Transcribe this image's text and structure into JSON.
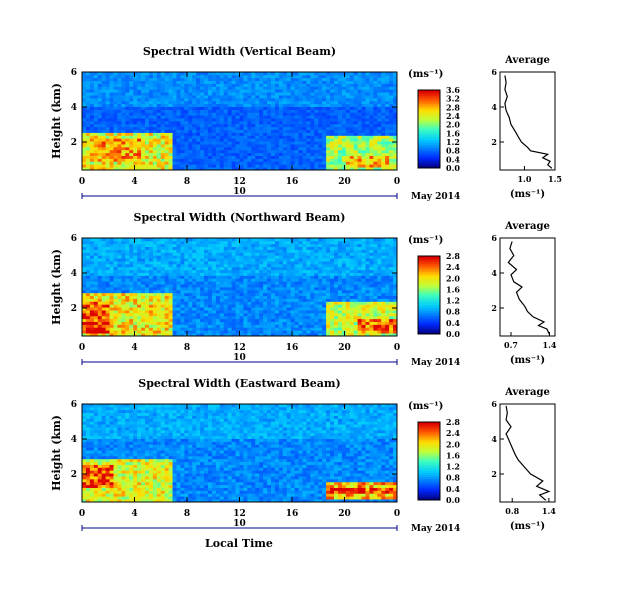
{
  "chart_data": [
    {
      "type": "heatmap",
      "title": "Spectral Width (Vertical Beam)",
      "ylabel": "Height (km)",
      "xticks": [
        "0",
        "4",
        "8",
        "12",
        "16",
        "20",
        "0"
      ],
      "yticks": [
        "2",
        "4",
        "6"
      ],
      "xlim": [
        0,
        24
      ],
      "ylim": [
        0.4,
        6.0
      ],
      "colorbar": {
        "unit": "(ms⁻¹)",
        "ticks": [
          "0.0",
          "0.4",
          "0.8",
          "1.2",
          "1.6",
          "2.0",
          "2.4",
          "2.8",
          "3.2",
          "3.6"
        ],
        "range": [
          0,
          3.6
        ]
      },
      "date_bar": {
        "label": "10",
        "date": "May 2014"
      },
      "profile": {
        "title": "Average",
        "xlabel": "(ms⁻¹)",
        "xticks": [
          "1.0",
          "1.5"
        ],
        "xlim": [
          0.6,
          1.5
        ],
        "yticks": [
          "2",
          "4",
          "6"
        ],
        "ylim": [
          0.4,
          6.0
        ],
        "points": [
          [
            1.45,
            0.5
          ],
          [
            1.38,
            0.7
          ],
          [
            1.42,
            0.9
          ],
          [
            1.3,
            1.1
          ],
          [
            1.38,
            1.3
          ],
          [
            1.1,
            1.5
          ],
          [
            1.05,
            1.7
          ],
          [
            0.95,
            2.0
          ],
          [
            0.9,
            2.3
          ],
          [
            0.85,
            2.6
          ],
          [
            0.78,
            3.0
          ],
          [
            0.75,
            3.4
          ],
          [
            0.7,
            3.8
          ],
          [
            0.68,
            4.2
          ],
          [
            0.72,
            4.6
          ],
          [
            0.68,
            5.0
          ],
          [
            0.7,
            5.4
          ],
          [
            0.68,
            5.8
          ]
        ]
      },
      "regions": [
        {
          "t0": 0,
          "t1": 7,
          "h0": 0.4,
          "h1": 2.6,
          "v": 2.6
        },
        {
          "t0": 0.5,
          "t1": 4.5,
          "h0": 0.9,
          "h1": 2.2,
          "v": 3.0
        },
        {
          "t0": 18.5,
          "t1": 24,
          "h0": 0.4,
          "h1": 2.3,
          "v": 2.3
        },
        {
          "t0": 20,
          "t1": 23.5,
          "h0": 0.5,
          "h1": 1.2,
          "v": 2.9
        },
        {
          "t0": 0,
          "t1": 24,
          "h0": 4.0,
          "h1": 6.0,
          "v": 1.0
        }
      ]
    },
    {
      "type": "heatmap",
      "title": "Spectral Width (Northward Beam)",
      "ylabel": "Height (km)",
      "xticks": [
        "0",
        "4",
        "8",
        "12",
        "16",
        "20",
        "0"
      ],
      "yticks": [
        "2",
        "4",
        "6"
      ],
      "xlim": [
        0,
        24
      ],
      "ylim": [
        0.4,
        6.0
      ],
      "colorbar": {
        "unit": "(ms⁻¹)",
        "ticks": [
          "0.0",
          "0.4",
          "0.8",
          "1.2",
          "1.6",
          "2.0",
          "2.4",
          "2.8"
        ],
        "range": [
          0,
          2.8
        ]
      },
      "date_bar": {
        "label": "10",
        "date": "May 2014"
      },
      "profile": {
        "title": "Average",
        "xlabel": "(ms⁻¹)",
        "xticks": [
          "0.7",
          "1.4"
        ],
        "xlim": [
          0.5,
          1.5
        ],
        "yticks": [
          "2",
          "4",
          "6"
        ],
        "ylim": [
          0.4,
          6.0
        ],
        "points": [
          [
            1.4,
            0.5
          ],
          [
            1.35,
            0.8
          ],
          [
            1.2,
            1.0
          ],
          [
            1.3,
            1.2
          ],
          [
            1.1,
            1.5
          ],
          [
            1.0,
            1.8
          ],
          [
            0.95,
            2.1
          ],
          [
            0.85,
            2.5
          ],
          [
            0.8,
            2.9
          ],
          [
            0.9,
            3.2
          ],
          [
            0.75,
            3.5
          ],
          [
            0.7,
            3.9
          ],
          [
            0.8,
            4.2
          ],
          [
            0.65,
            4.6
          ],
          [
            0.75,
            5.0
          ],
          [
            0.68,
            5.4
          ],
          [
            0.72,
            5.8
          ]
        ]
      },
      "regions": [
        {
          "t0": 0,
          "t1": 7,
          "h0": 0.4,
          "h1": 2.8,
          "v": 2.1
        },
        {
          "t0": 0,
          "t1": 2,
          "h0": 0.6,
          "h1": 2.3,
          "v": 2.7
        },
        {
          "t0": 18.5,
          "t1": 24,
          "h0": 0.4,
          "h1": 2.4,
          "v": 1.9
        },
        {
          "t0": 21,
          "t1": 24,
          "h0": 0.6,
          "h1": 1.4,
          "v": 2.6
        },
        {
          "t0": 0,
          "t1": 24,
          "h0": 3.8,
          "h1": 6.0,
          "v": 0.9
        }
      ]
    },
    {
      "type": "heatmap",
      "title": "Spectral Width (Eastward Beam)",
      "ylabel": "Height (km)",
      "xticks": [
        "0",
        "4",
        "8",
        "12",
        "16",
        "20",
        "0"
      ],
      "yticks": [
        "2",
        "4",
        "6"
      ],
      "xlim": [
        0,
        24
      ],
      "ylim": [
        0.4,
        6.0
      ],
      "colorbar": {
        "unit": "(ms⁻¹)",
        "ticks": [
          "0.0",
          "0.4",
          "0.8",
          "1.2",
          "1.6",
          "2.0",
          "2.4",
          "2.8"
        ],
        "range": [
          0,
          2.8
        ]
      },
      "date_bar": {
        "label": "10",
        "date": "May 2014"
      },
      "profile": {
        "title": "Average",
        "xlabel": "(ms⁻¹)",
        "xticks": [
          "0.8",
          "1.4"
        ],
        "xlim": [
          0.6,
          1.5
        ],
        "yticks": [
          "2",
          "4",
          "6"
        ],
        "ylim": [
          0.4,
          6.0
        ],
        "points": [
          [
            1.35,
            0.5
          ],
          [
            1.25,
            0.8
          ],
          [
            1.4,
            1.0
          ],
          [
            1.2,
            1.3
          ],
          [
            1.3,
            1.6
          ],
          [
            1.1,
            2.0
          ],
          [
            1.0,
            2.4
          ],
          [
            0.9,
            2.8
          ],
          [
            0.85,
            3.1
          ],
          [
            0.8,
            3.5
          ],
          [
            0.75,
            3.9
          ],
          [
            0.7,
            4.3
          ],
          [
            0.78,
            4.7
          ],
          [
            0.7,
            5.1
          ],
          [
            0.72,
            5.5
          ],
          [
            0.7,
            5.9
          ]
        ]
      },
      "regions": [
        {
          "t0": 0,
          "t1": 7,
          "h0": 0.4,
          "h1": 2.8,
          "v": 2.0
        },
        {
          "t0": 0,
          "t1": 2.5,
          "h0": 1.2,
          "h1": 2.6,
          "v": 2.7
        },
        {
          "t0": 18.5,
          "t1": 24,
          "h0": 0.6,
          "h1": 1.5,
          "v": 2.3
        },
        {
          "t0": 19,
          "t1": 24,
          "h0": 0.9,
          "h1": 1.3,
          "v": 2.7
        },
        {
          "t0": 0,
          "t1": 24,
          "h0": 4.0,
          "h1": 6.0,
          "v": 0.9
        }
      ]
    }
  ],
  "footer": {
    "xlabel": "Local Time"
  }
}
